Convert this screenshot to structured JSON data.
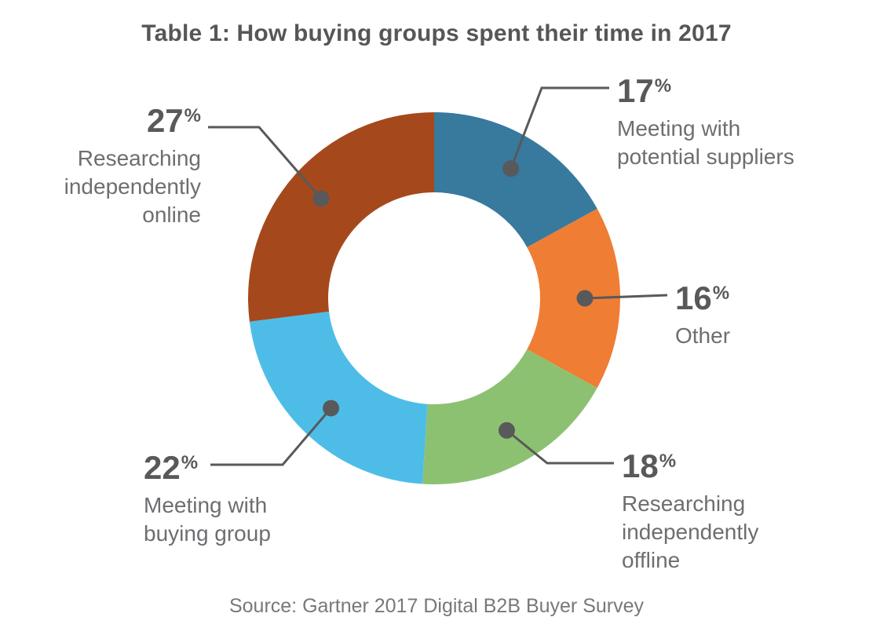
{
  "title": "Table 1: How buying groups spent their time in 2017",
  "source": "Source: Gartner 2017 Digital B2B Buyer Survey",
  "ui": {
    "percent_sign": "%",
    "callout_color": "#58595b",
    "number_color": "#58595b",
    "description_color": "#6d6e71",
    "background_color": "#ffffff"
  },
  "chart_data": {
    "type": "pie",
    "subtype": "donut",
    "title": "Table 1: How buying groups spent their time in 2017",
    "source": "Source: Gartner 2017 Digital B2B Buyer Survey",
    "unit": "%",
    "start_angle_deg": 0,
    "direction": "clockwise",
    "inner_radius_ratio": 0.57,
    "legend_position": "callout-labels",
    "slices": [
      {
        "label": "Meeting with potential suppliers",
        "label_lines": "Meeting with\npotential suppliers",
        "value": 17,
        "color": "#38799e"
      },
      {
        "label": "Other",
        "label_lines": "Other",
        "value": 16,
        "color": "#ef7d33"
      },
      {
        "label": "Researching independently offline",
        "label_lines": "Researching\nindependently\noffline",
        "value": 18,
        "color": "#8cc172"
      },
      {
        "label": "Meeting with buying group",
        "label_lines": "Meeting with\nbuying group",
        "value": 22,
        "color": "#4dbde8"
      },
      {
        "label": "Researching independently online",
        "label_lines": "Researching\nindependently\nonline",
        "value": 27,
        "color": "#a5491d"
      }
    ]
  }
}
